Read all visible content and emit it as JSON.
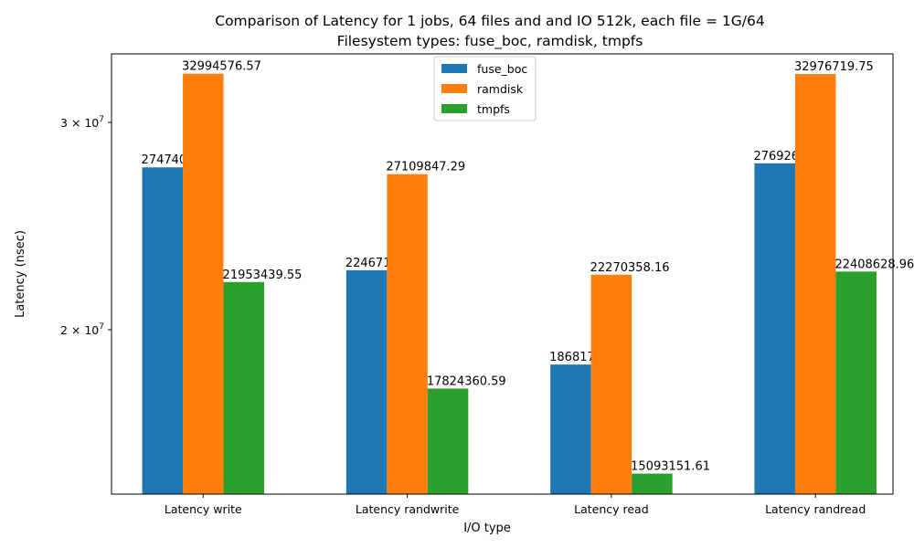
{
  "chart_data": {
    "type": "bar",
    "title": "Comparison of Latency for 1 jobs, 64 files and  and IO 512k, each file = 1G/64",
    "subtitle": "Filesystem types: fuse_boc, ramdisk, tmpfs",
    "xlabel": "I/O type",
    "ylabel": "Latency (nsec)",
    "yscale": "log",
    "ylim": [
      14500000,
      34300000
    ],
    "yticks": [
      {
        "value": 20000000,
        "base": "2 × 10",
        "exp": "7"
      },
      {
        "value": 30000000,
        "base": "3 × 10",
        "exp": "7"
      }
    ],
    "categories": [
      "Latency write",
      "Latency randwrite",
      "Latency read",
      "Latency randread"
    ],
    "series": [
      {
        "name": "fuse_boc",
        "color": "#1f77b4",
        "values": [
          27474008.06,
          22467103.94,
          18681754.88,
          27692674.36
        ],
        "labels": [
          "27474008.06",
          "22467103.94",
          "18681754.88",
          "27692674.36"
        ]
      },
      {
        "name": "ramdisk",
        "color": "#ff7f0e",
        "values": [
          32994576.57,
          27109847.29,
          22270358.16,
          32976719.75
        ],
        "labels": [
          "32994576.57",
          "27109847.29",
          "22270358.16",
          "32976719.75"
        ]
      },
      {
        "name": "tmpfs",
        "color": "#2ca02c",
        "values": [
          21953439.55,
          17824360.59,
          15093151.61,
          22408628.96
        ],
        "labels": [
          "21953439.55",
          "17824360.59",
          "15093151.61",
          "22408628.96"
        ]
      }
    ],
    "legend": {
      "position": "top-center"
    },
    "grid": false
  }
}
